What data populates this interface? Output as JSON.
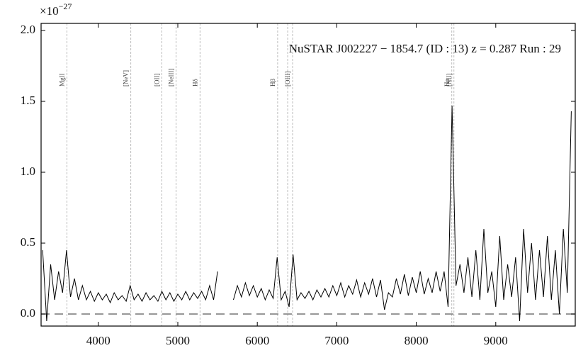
{
  "chart_data": {
    "type": "line",
    "title": "NuSTAR J002227 − 1854.7 (ID : 13)   z = 0.287   Run : 29",
    "offset_base": "×10",
    "offset_exponent": "−27",
    "color": "#000000",
    "hline": 0,
    "xlim": [
      3280,
      10000
    ],
    "ylim": [
      -0.085,
      2.05
    ],
    "xticks": [
      4000,
      5000,
      6000,
      7000,
      8000,
      9000
    ],
    "yticks": [
      {
        "value": 0,
        "label": "0.0"
      },
      {
        "value": 0.5,
        "label": "0.5"
      },
      {
        "value": 1,
        "label": "1.0"
      },
      {
        "value": 1.5,
        "label": "1.5"
      },
      {
        "value": 2,
        "label": "2.0"
      }
    ],
    "lines": [
      {
        "x": 3604,
        "label": "MgII"
      },
      {
        "x": 4409,
        "label": "[NeV]"
      },
      {
        "x": 4797,
        "label": "[OII]"
      },
      {
        "x": 4979,
        "label": "[NeIII]"
      },
      {
        "x": 5279,
        "label": "Hδ"
      },
      {
        "x": 6256,
        "label": "Hβ"
      },
      {
        "x": 6382,
        "label": null
      },
      {
        "x": 6444,
        "label": "[OIII]"
      },
      {
        "x": 8447,
        "label": "Hα"
      },
      {
        "x": 8474,
        "label": "[NII]"
      }
    ],
    "x": [
      3300,
      3350,
      3400,
      3450,
      3500,
      3550,
      3600,
      3650,
      3700,
      3750,
      3800,
      3850,
      3900,
      3950,
      4000,
      4050,
      4100,
      4150,
      4200,
      4250,
      4300,
      4350,
      4400,
      4450,
      4500,
      4550,
      4600,
      4650,
      4700,
      4750,
      4800,
      4850,
      4900,
      4950,
      5000,
      5050,
      5100,
      5150,
      5200,
      5250,
      5300,
      5350,
      5400,
      5450,
      5500,
      5550,
      5600,
      5650,
      5700,
      5750,
      5800,
      5850,
      5900,
      5950,
      6000,
      6050,
      6100,
      6150,
      6200,
      6250,
      6300,
      6350,
      6400,
      6450,
      6500,
      6550,
      6600,
      6650,
      6700,
      6750,
      6800,
      6850,
      6900,
      6950,
      7000,
      7050,
      7100,
      7150,
      7200,
      7250,
      7300,
      7350,
      7400,
      7450,
      7500,
      7550,
      7600,
      7650,
      7700,
      7750,
      7800,
      7850,
      7900,
      7950,
      8000,
      8050,
      8100,
      8150,
      8200,
      8250,
      8300,
      8350,
      8400,
      8450,
      8500,
      8550,
      8600,
      8650,
      8700,
      8750,
      8800,
      8850,
      8900,
      8950,
      9000,
      9050,
      9100,
      9150,
      9200,
      9250,
      9300,
      9350,
      9400,
      9450,
      9500,
      9550,
      9600,
      9650,
      9700,
      9750,
      9800,
      9850,
      9900,
      9950
    ],
    "values": [
      0.45,
      -0.05,
      0.35,
      0.1,
      0.3,
      0.15,
      0.45,
      0.12,
      0.25,
      0.1,
      0.2,
      0.1,
      0.16,
      0.09,
      0.15,
      0.1,
      0.14,
      0.08,
      0.15,
      0.1,
      0.13,
      0.09,
      0.2,
      0.1,
      0.14,
      0.09,
      0.15,
      0.1,
      0.13,
      0.09,
      0.16,
      0.1,
      0.15,
      0.09,
      0.14,
      0.1,
      0.16,
      0.1,
      0.15,
      0.11,
      0.16,
      0.1,
      0.2,
      0.1,
      0.3,
      null,
      null,
      null,
      0.1,
      0.2,
      0.12,
      0.22,
      0.13,
      0.2,
      0.12,
      0.18,
      0.1,
      0.17,
      0.11,
      0.4,
      0.1,
      0.16,
      0.05,
      0.42,
      0.1,
      0.15,
      0.11,
      0.16,
      0.1,
      0.17,
      0.12,
      0.18,
      0.12,
      0.2,
      0.13,
      0.22,
      0.12,
      0.2,
      0.14,
      0.24,
      0.12,
      0.22,
      0.14,
      0.25,
      0.12,
      0.24,
      0.03,
      0.15,
      0.12,
      0.25,
      0.14,
      0.28,
      0.13,
      0.26,
      0.15,
      0.3,
      0.14,
      0.25,
      0.15,
      0.3,
      0.16,
      0.3,
      0.05,
      1.47,
      0.2,
      0.35,
      0.15,
      0.4,
      0.12,
      0.45,
      0.1,
      0.6,
      0.15,
      0.3,
      0.05,
      0.55,
      0.1,
      0.35,
      0.12,
      0.4,
      -0.05,
      0.6,
      0.15,
      0.5,
      0.1,
      0.45,
      0.12,
      0.55,
      0.1,
      0.45,
      0.0,
      0.6,
      0.15,
      1.43
    ]
  }
}
